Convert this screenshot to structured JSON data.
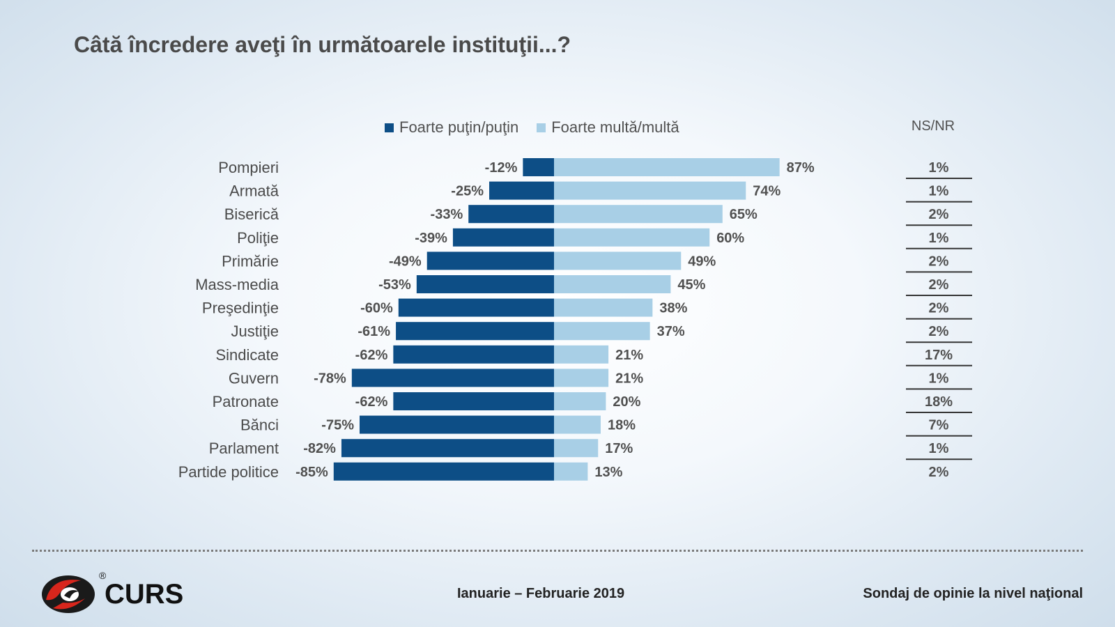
{
  "title": "Câtă încredere aveţi în următoarele instituţii...?",
  "legend": {
    "negative_label": "Foarte puţin/puţin",
    "positive_label": "Foarte multă/multă",
    "nsnr_label": "NS/NR"
  },
  "colors": {
    "negative": "#0d4e86",
    "positive": "#a8cfe6",
    "text": "#4a4a4a"
  },
  "chart_data": {
    "type": "bar",
    "orientation": "horizontal-diverging",
    "title": "Câtă încredere aveţi în următoarele instituţii...?",
    "categories": [
      "Pompieri",
      "Armată",
      "Biserică",
      "Poliţie",
      "Primărie",
      "Mass-media",
      "Preşedinţie",
      "Justiţie",
      "Sindicate",
      "Guvern",
      "Patronate",
      "Bănci",
      "Parlament",
      "Partide politice"
    ],
    "series": [
      {
        "name": "Foarte puţin/puţin",
        "values": [
          -12,
          -25,
          -33,
          -39,
          -49,
          -53,
          -60,
          -61,
          -62,
          -78,
          -62,
          -75,
          -82,
          -85
        ]
      },
      {
        "name": "Foarte multă/multă",
        "values": [
          87,
          74,
          65,
          60,
          49,
          45,
          38,
          37,
          21,
          21,
          20,
          18,
          17,
          13
        ]
      },
      {
        "name": "NS/NR",
        "values": [
          1,
          1,
          2,
          1,
          2,
          2,
          2,
          2,
          17,
          1,
          18,
          7,
          1,
          2
        ]
      }
    ],
    "value_labels_negative": [
      "-12%",
      "-25%",
      "-33%",
      "-39%",
      "-49%",
      "-53%",
      "-60%",
      "-61%",
      "-62%",
      "-78%",
      "-62%",
      "-75%",
      "-82%",
      "-85%"
    ],
    "value_labels_positive": [
      "87%",
      "74%",
      "65%",
      "60%",
      "49%",
      "45%",
      "38%",
      "37%",
      "21%",
      "21%",
      "20%",
      "18%",
      "17%",
      "13%"
    ],
    "value_labels_nsnr": [
      "1%",
      "1%",
      "2%",
      "1%",
      "2%",
      "2%",
      "2%",
      "2%",
      "17%",
      "1%",
      "18%",
      "7%",
      "1%",
      "2%"
    ],
    "legend_position": "top",
    "grid": false
  },
  "footer": {
    "logo_text": "CURS",
    "logo_mark": "®",
    "date": "Ianuarie – Februarie 2019",
    "source": "Sondaj de opinie la nivel naţional"
  }
}
